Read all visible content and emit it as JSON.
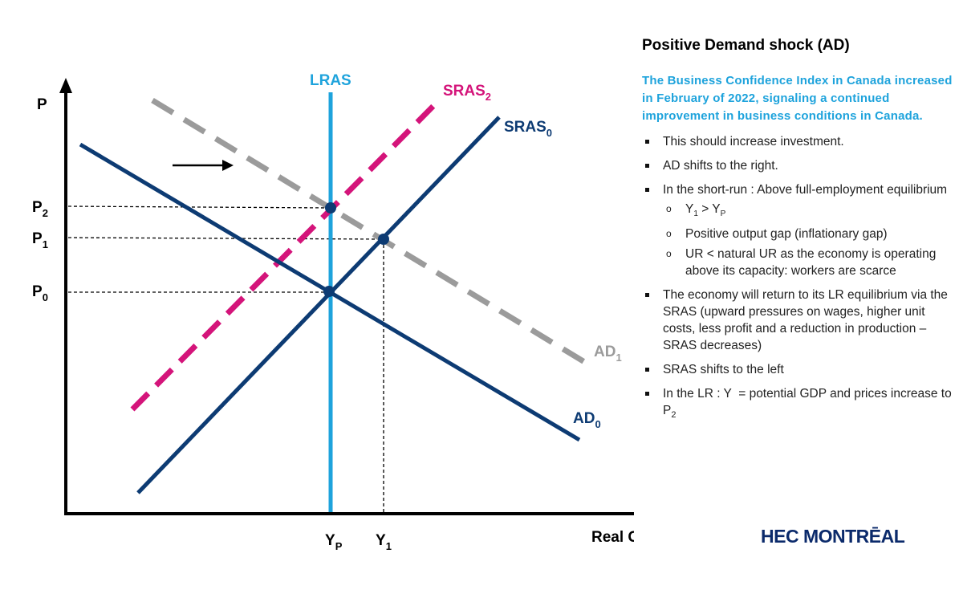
{
  "diagram": {
    "axes": {
      "y_label": "P",
      "x_label": "Real GDP"
    },
    "curves": {
      "lras": "LRAS",
      "sras2_base": "SRAS",
      "sras2_sub": "2",
      "sras0_base": "SRAS",
      "sras0_sub": "0",
      "ad1_base": "AD",
      "ad1_sub": "1",
      "ad0_base": "AD",
      "ad0_sub": "0"
    },
    "price_levels": [
      {
        "base": "P",
        "sub": "2"
      },
      {
        "base": "P",
        "sub": "1"
      },
      {
        "base": "P",
        "sub": "0"
      }
    ],
    "output_levels": [
      {
        "base": "Y",
        "sub": "P"
      },
      {
        "base": "Y",
        "sub": "1"
      }
    ],
    "shift_arrow": "AD shifts right",
    "colors": {
      "lras": "#1ea3dc",
      "sras2": "#d4147a",
      "main": "#0d3b73",
      "ad1": "#9b9b9b"
    }
  },
  "panel": {
    "title": "Positive Demand shock (AD)",
    "intro": "The Business Confidence Index in Canada increased in February of 2022, signaling a continued improvement in business conditions in Canada.",
    "bullets": [
      "This should increase investment.",
      "AD shifts to the right.",
      "In the short-run : Above full-employment equilibrium",
      "The economy will return to its LR equilibrium via the SRAS (upward pressures on wages, higher unit costs, less profit and a reduction in production – SRAS decreases)",
      "SRAS shifts to the left",
      "In the LR : Y  = potential GDP and prices increase to P"
    ],
    "sub_bullet_1": {
      "a": "Y",
      "a_sub": "1",
      "op": " > ",
      "b": "Y",
      "b_sub": "P"
    },
    "sub_bullet_2": "Positive output gap (inflationary gap)",
    "sub_bullet_3": "UR < natural UR as the economy is operating above its capacity: workers are scarce",
    "last_sub": "2"
  },
  "logo": "HEC MONTRĒAL"
}
